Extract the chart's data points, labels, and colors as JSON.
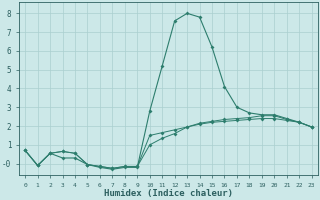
{
  "x": [
    0,
    1,
    2,
    3,
    4,
    5,
    6,
    7,
    8,
    9,
    10,
    11,
    12,
    13,
    14,
    15,
    16,
    17,
    18,
    19,
    20,
    21,
    22,
    23
  ],
  "line1": [
    0.7,
    -0.1,
    0.55,
    0.65,
    0.55,
    -0.05,
    -0.15,
    -0.25,
    -0.15,
    -0.15,
    1.5,
    1.65,
    1.8,
    1.95,
    2.1,
    2.2,
    2.25,
    2.3,
    2.35,
    2.4,
    2.4,
    2.3,
    2.2,
    1.95
  ],
  "line2": [
    0.7,
    -0.1,
    0.55,
    0.65,
    0.55,
    -0.05,
    -0.15,
    -0.25,
    -0.15,
    -0.15,
    1.0,
    1.35,
    1.6,
    1.95,
    2.15,
    2.25,
    2.35,
    2.4,
    2.45,
    2.55,
    2.55,
    2.35,
    2.2,
    1.95
  ],
  "line3": [
    0.7,
    -0.1,
    0.55,
    0.3,
    0.3,
    -0.05,
    -0.2,
    -0.3,
    -0.2,
    -0.2,
    2.8,
    5.2,
    7.6,
    8.0,
    7.8,
    6.2,
    4.1,
    3.0,
    2.7,
    2.6,
    2.6,
    2.4,
    2.2,
    1.95
  ],
  "line_color": "#2d7d6d",
  "bg_color": "#cce8e8",
  "grid_color": "#aacfcf",
  "tick_color": "#2d6060",
  "xlabel": "Humidex (Indice chaleur)",
  "ylim": [
    -0.6,
    8.6
  ],
  "xlim": [
    -0.5,
    23.5
  ],
  "yticks": [
    0,
    1,
    2,
    3,
    4,
    5,
    6,
    7,
    8
  ],
  "ytick_labels": [
    "-0",
    "1",
    "2",
    "3",
    "4",
    "5",
    "6",
    "7",
    "8"
  ],
  "xticks": [
    0,
    1,
    2,
    3,
    4,
    5,
    6,
    7,
    8,
    9,
    10,
    11,
    12,
    13,
    14,
    15,
    16,
    17,
    18,
    19,
    20,
    21,
    22,
    23
  ],
  "xtick_labels": [
    "0",
    "1",
    "2",
    "3",
    "4",
    "5",
    "6",
    "7",
    "8",
    "9",
    "10",
    "11",
    "12",
    "13",
    "14",
    "15",
    "16",
    "17",
    "18",
    "19",
    "20",
    "21",
    "22",
    "23"
  ]
}
